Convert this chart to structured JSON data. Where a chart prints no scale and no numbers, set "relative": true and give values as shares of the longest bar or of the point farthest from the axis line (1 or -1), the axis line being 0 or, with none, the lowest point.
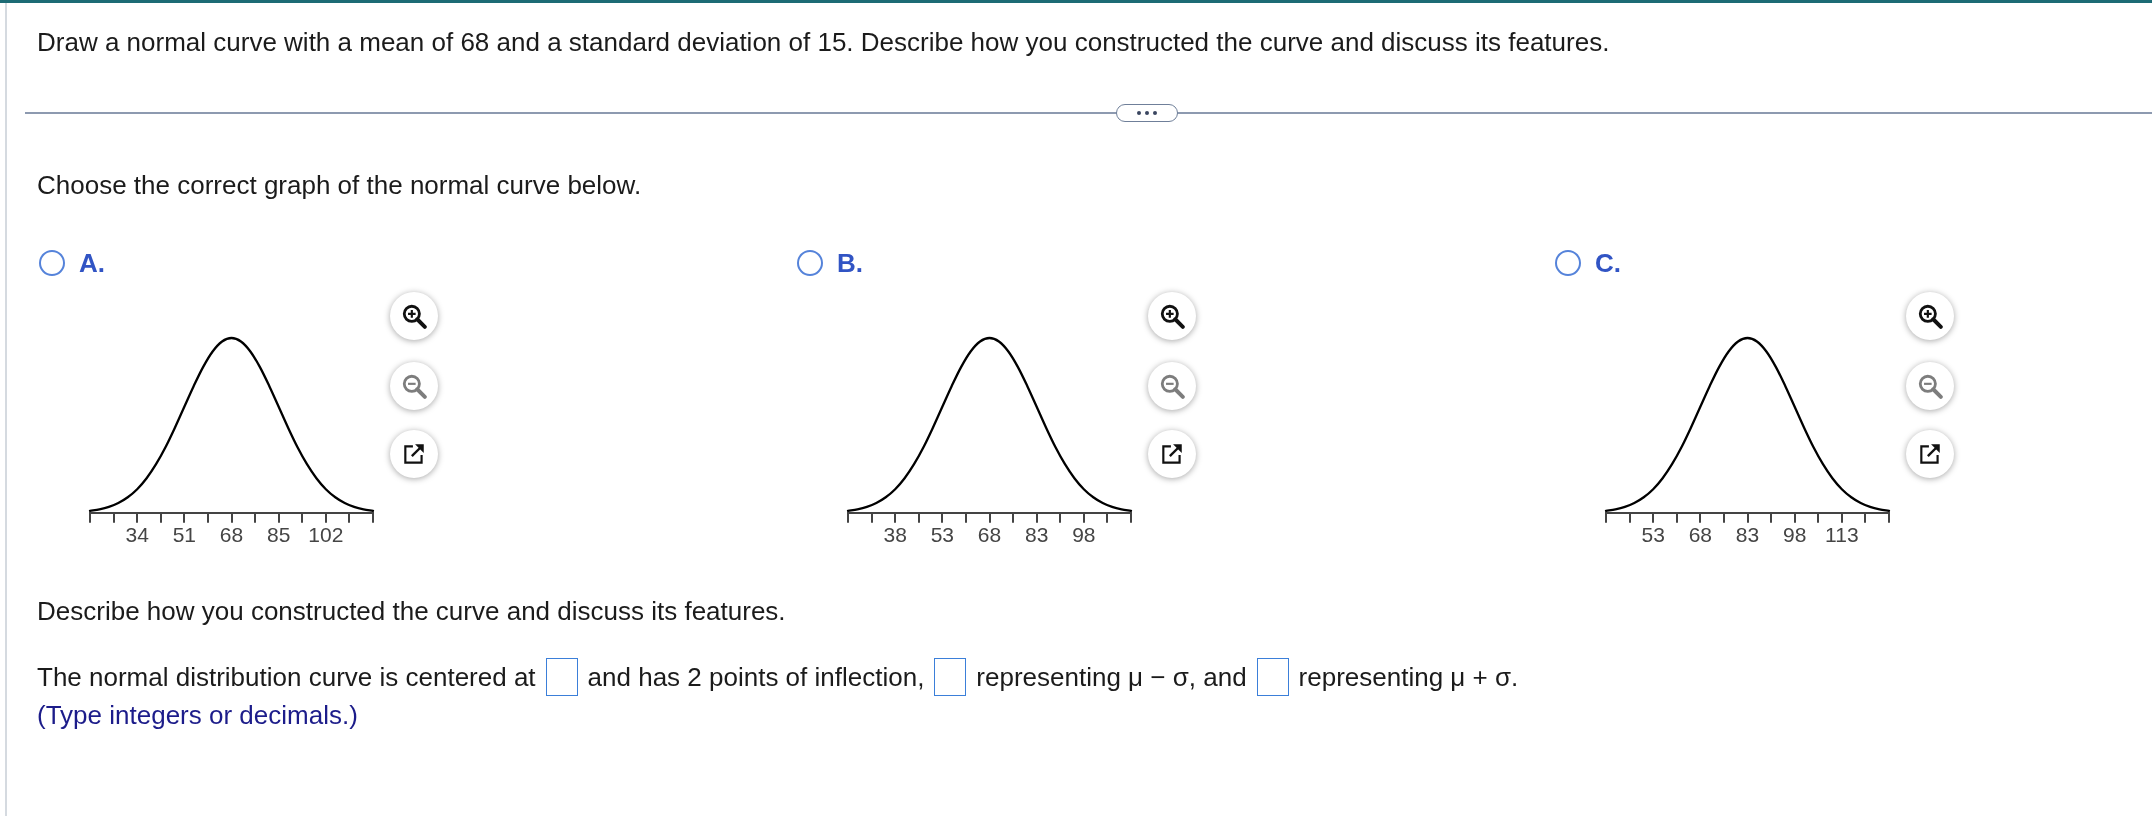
{
  "chart_data": [
    {
      "type": "other",
      "title": "Draw a normal curve with a mean of 68 and a standard deviation of 15. Describe how you constructed the curve and discuss its features.",
      "subtitle": "Choose the correct graph of the normal curve below."
    },
    {
      "type": "line",
      "title": "A.",
      "relative": true,
      "color": "#000000",
      "x": [
        17,
        20.4,
        23.8,
        27.2,
        30.6,
        34,
        37.4,
        40.8,
        44.2,
        47.6,
        51,
        54.4,
        57.8,
        61.2,
        64.6,
        68,
        71.4,
        74.8,
        78.2,
        81.6,
        85,
        88.4,
        91.8,
        95.2,
        98.6,
        102,
        105.4,
        108.8,
        112.2,
        115.6,
        119
      ],
      "values": [
        0.011,
        0.02,
        0.034,
        0.056,
        0.089,
        0.135,
        0.198,
        0.278,
        0.375,
        0.487,
        0.607,
        0.726,
        0.835,
        0.923,
        0.98,
        1,
        0.98,
        0.923,
        0.835,
        0.726,
        0.607,
        0.487,
        0.375,
        0.278,
        0.198,
        0.135,
        0.089,
        0.056,
        0.034,
        0.02,
        0.011
      ],
      "xlim": [
        17,
        119
      ],
      "xticks": [
        {
          "value": 17,
          "label": null
        },
        {
          "value": 25.5,
          "label": null
        },
        34,
        {
          "value": 42.5,
          "label": null
        },
        51,
        {
          "value": 59.5,
          "label": null
        },
        68,
        {
          "value": 76.5,
          "label": null
        },
        85,
        {
          "value": 93.5,
          "label": null
        },
        102,
        {
          "value": 110.5,
          "label": null
        },
        {
          "value": 119,
          "label": null
        }
      ]
    },
    {
      "type": "line",
      "title": "B.",
      "relative": true,
      "color": "#000000",
      "x": [
        23,
        26,
        29,
        32,
        35,
        38,
        41,
        44,
        47,
        50,
        53,
        56,
        59,
        62,
        65,
        68,
        71,
        74,
        77,
        80,
        83,
        86,
        89,
        92,
        95,
        98,
        101,
        104,
        107,
        110,
        113
      ],
      "values": [
        0.011,
        0.02,
        0.034,
        0.056,
        0.089,
        0.135,
        0.198,
        0.278,
        0.375,
        0.487,
        0.607,
        0.726,
        0.835,
        0.923,
        0.98,
        1,
        0.98,
        0.923,
        0.835,
        0.726,
        0.607,
        0.487,
        0.375,
        0.278,
        0.198,
        0.135,
        0.089,
        0.056,
        0.034,
        0.02,
        0.011
      ],
      "xlim": [
        23,
        113
      ],
      "xticks": [
        {
          "value": 23,
          "label": null
        },
        {
          "value": 30.5,
          "label": null
        },
        38,
        {
          "value": 45.5,
          "label": null
        },
        53,
        {
          "value": 60.5,
          "label": null
        },
        68,
        {
          "value": 75.5,
          "label": null
        },
        83,
        {
          "value": 90.5,
          "label": null
        },
        98,
        {
          "value": 105.5,
          "label": null
        },
        {
          "value": 113,
          "label": null
        }
      ]
    },
    {
      "type": "line",
      "title": "C.",
      "relative": true,
      "color": "#000000",
      "x": [
        38,
        41,
        44,
        47,
        50,
        53,
        56,
        59,
        62,
        65,
        68,
        71,
        74,
        77,
        80,
        83,
        86,
        89,
        92,
        95,
        98,
        101,
        104,
        107,
        110,
        113,
        116,
        119,
        122,
        125,
        128
      ],
      "values": [
        0.011,
        0.02,
        0.034,
        0.056,
        0.089,
        0.135,
        0.198,
        0.278,
        0.375,
        0.487,
        0.607,
        0.726,
        0.835,
        0.923,
        0.98,
        1,
        0.98,
        0.923,
        0.835,
        0.726,
        0.607,
        0.487,
        0.375,
        0.278,
        0.198,
        0.135,
        0.089,
        0.056,
        0.034,
        0.02,
        0.011
      ],
      "xlim": [
        38,
        128
      ],
      "xticks": [
        {
          "value": 38,
          "label": null
        },
        {
          "value": 45.5,
          "label": null
        },
        53,
        {
          "value": 60.5,
          "label": null
        },
        68,
        {
          "value": 75.5,
          "label": null
        },
        83,
        {
          "value": 90.5,
          "label": null
        },
        98,
        {
          "value": 105.5,
          "label": null
        },
        113,
        {
          "value": 120.5,
          "label": null
        },
        {
          "value": 128,
          "label": null
        }
      ]
    },
    {
      "type": "other",
      "title": "Describe how you constructed the curve and discuss its features.",
      "annotations": [
        "The normal distribution curve is centered at",
        "and has 2 points of inflection,",
        "representing μ − σ, and",
        "representing μ + σ.",
        "(Type integers or decimals.)"
      ]
    }
  ]
}
